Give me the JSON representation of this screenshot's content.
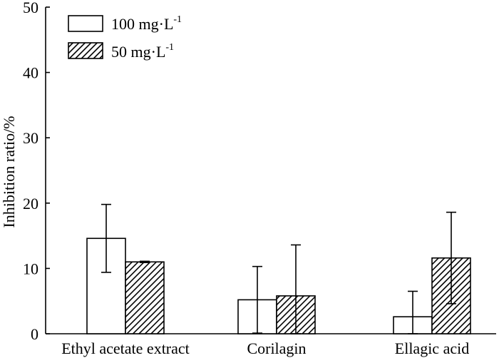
{
  "chart_data": {
    "type": "bar",
    "title": "",
    "xlabel": "",
    "ylabel": "Inhibition ratio/%",
    "ylim": [
      0,
      50
    ],
    "yticks": [
      "0",
      "10",
      "20",
      "30",
      "40",
      "50"
    ],
    "ytick_values": [
      0,
      10,
      20,
      30,
      40,
      50
    ],
    "categories": [
      "Ethyl acetate extract",
      "Corilagin",
      "Ellagic acid"
    ],
    "series": [
      {
        "name": "100 mg·L",
        "superscript": "-1",
        "fill": "white",
        "values": [
          14.6,
          5.2,
          2.6
        ],
        "errors": [
          5.2,
          5.1,
          3.9
        ]
      },
      {
        "name": "50 mg·L",
        "superscript": "-1",
        "fill": "hatched",
        "values": [
          11.0,
          5.8,
          11.6
        ],
        "errors": [
          0.1,
          7.8,
          7.0
        ]
      }
    ],
    "legend_position": "top-left",
    "grid": false
  },
  "colors": {
    "stroke": "#000000",
    "background": "#ffffff"
  }
}
